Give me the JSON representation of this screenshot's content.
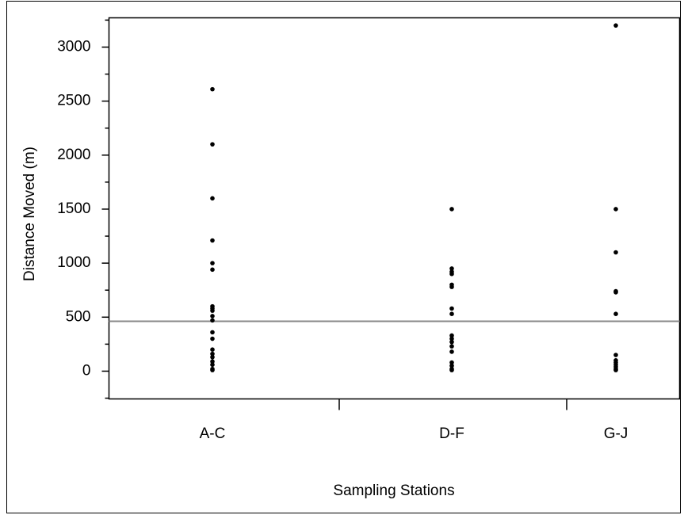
{
  "chart_data": {
    "type": "strip",
    "x_label": "Sampling Stations",
    "y_label": "Distance Moved (m)",
    "categories": [
      "A-C",
      "D-F",
      "G-J"
    ],
    "values": [
      [
        2610,
        2100,
        1600,
        1210,
        1000,
        940,
        600,
        580,
        560,
        510,
        470,
        360,
        300,
        200,
        160,
        130,
        90,
        60,
        20,
        10
      ],
      [
        1500,
        950,
        920,
        900,
        800,
        780,
        580,
        530,
        330,
        300,
        270,
        230,
        180,
        80,
        50,
        20,
        10
      ],
      [
        3200,
        1500,
        1100,
        740,
        730,
        530,
        150,
        100,
        80,
        60,
        40,
        20,
        10
      ]
    ],
    "color": "#000000",
    "reference_line": {
      "value": 462,
      "color": "#888888"
    },
    "ylim": [
      -257,
      3271
    ],
    "yticks": [
      0,
      500,
      1000,
      1500,
      2000,
      2500,
      3000
    ],
    "yminor_ticks": [
      -250,
      250,
      750,
      1250,
      1750,
      2250,
      2750,
      3250
    ]
  }
}
